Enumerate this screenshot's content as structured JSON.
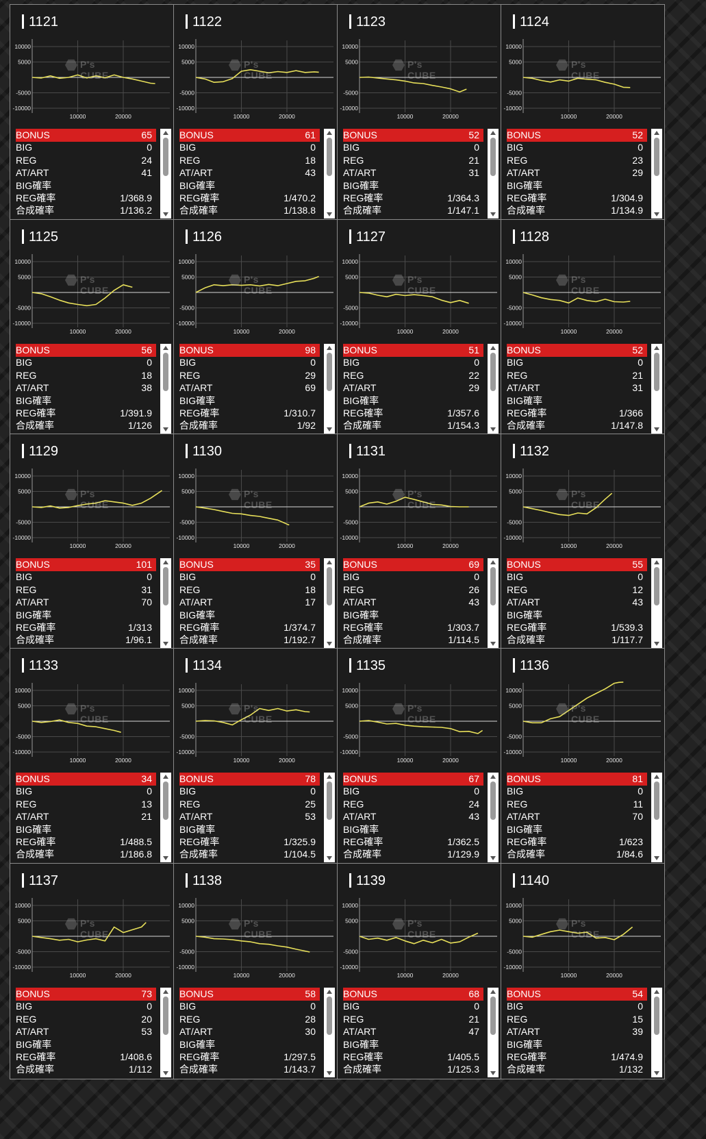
{
  "chart_common": {
    "type": "line",
    "y_ticks": [
      "10000",
      "5000",
      "-5000",
      "-10000"
    ],
    "x_ticks": [
      "10000",
      "20000"
    ],
    "watermark": "P's CUBE",
    "line_color": "#e8e05a"
  },
  "labels": {
    "bonus": "BONUS",
    "big": "BIG",
    "reg": "REG",
    "at_art": "AT/ART",
    "big_rate": "BIG確率",
    "reg_rate": "REG確率",
    "total_rate": "合成確率"
  },
  "colors": {
    "bonus_bar": "#d61f1f",
    "panel_bg": "#1c1c1c",
    "line": "#e8e05a"
  },
  "machines": [
    {
      "id": "1121",
      "bonus": "65",
      "big": "0",
      "reg": "24",
      "at_art": "41",
      "big_rate": "",
      "reg_rate": "1/368.9",
      "total_rate": "1/136.2",
      "chart_data": {
        "type": "line",
        "x": [
          0,
          2000,
          4000,
          6000,
          8000,
          10000,
          12000,
          14000,
          16000,
          18000,
          20000,
          22000,
          24000,
          26000,
          27000
        ],
        "y": [
          0,
          -200,
          500,
          -300,
          0,
          800,
          -200,
          500,
          -100,
          800,
          0,
          -500,
          -1200,
          -1900,
          -2000
        ]
      }
    },
    {
      "id": "1122",
      "bonus": "61",
      "big": "0",
      "reg": "18",
      "at_art": "43",
      "big_rate": "",
      "reg_rate": "1/470.2",
      "total_rate": "1/138.8",
      "chart_data": {
        "type": "line",
        "x": [
          0,
          2000,
          4000,
          6000,
          8000,
          10000,
          12000,
          14000,
          16000,
          18000,
          20000,
          22000,
          24000,
          26000,
          27000
        ],
        "y": [
          0,
          -500,
          -1600,
          -1400,
          -400,
          2000,
          2500,
          2000,
          1500,
          1900,
          1600,
          2200,
          1600,
          1800,
          1700
        ]
      }
    },
    {
      "id": "1123",
      "bonus": "52",
      "big": "0",
      "reg": "21",
      "at_art": "31",
      "big_rate": "",
      "reg_rate": "1/364.3",
      "total_rate": "1/147.1",
      "chart_data": {
        "type": "line",
        "x": [
          0,
          2000,
          4000,
          6000,
          8000,
          10000,
          12000,
          14000,
          16000,
          18000,
          20000,
          22000,
          23500
        ],
        "y": [
          0,
          100,
          -200,
          -500,
          -800,
          -1200,
          -1800,
          -2000,
          -2600,
          -3100,
          -3700,
          -4700,
          -3800
        ]
      }
    },
    {
      "id": "1124",
      "bonus": "52",
      "big": "0",
      "reg": "23",
      "at_art": "29",
      "big_rate": "",
      "reg_rate": "1/304.9",
      "total_rate": "1/134.9",
      "chart_data": {
        "type": "line",
        "x": [
          0,
          2000,
          4000,
          6000,
          8000,
          10000,
          12000,
          14000,
          16000,
          18000,
          20000,
          22000,
          23500
        ],
        "y": [
          0,
          -300,
          -1000,
          -1500,
          -800,
          -1200,
          -300,
          -600,
          -800,
          -1600,
          -2200,
          -3200,
          -3300
        ]
      }
    },
    {
      "id": "1125",
      "bonus": "56",
      "big": "0",
      "reg": "18",
      "at_art": "38",
      "big_rate": "",
      "reg_rate": "1/391.9",
      "total_rate": "1/126",
      "chart_data": {
        "type": "line",
        "x": [
          0,
          2000,
          4000,
          6000,
          8000,
          10000,
          12000,
          14000,
          16000,
          18000,
          20000,
          22000
        ],
        "y": [
          0,
          -400,
          -1400,
          -2500,
          -3400,
          -3900,
          -4300,
          -3900,
          -1800,
          700,
          2500,
          1700
        ]
      }
    },
    {
      "id": "1126",
      "bonus": "98",
      "big": "0",
      "reg": "29",
      "at_art": "69",
      "big_rate": "",
      "reg_rate": "1/310.7",
      "total_rate": "1/92",
      "chart_data": {
        "type": "line",
        "x": [
          0,
          2000,
          4000,
          6000,
          8000,
          10000,
          12000,
          14000,
          16000,
          18000,
          20000,
          22000,
          24000,
          26000,
          27000
        ],
        "y": [
          0,
          1500,
          2500,
          2200,
          2500,
          2300,
          2500,
          2100,
          2600,
          2200,
          2900,
          3600,
          3800,
          4600,
          5200
        ]
      }
    },
    {
      "id": "1127",
      "bonus": "51",
      "big": "0",
      "reg": "22",
      "at_art": "29",
      "big_rate": "",
      "reg_rate": "1/357.6",
      "total_rate": "1/154.3",
      "chart_data": {
        "type": "line",
        "x": [
          0,
          2000,
          4000,
          6000,
          8000,
          10000,
          12000,
          14000,
          16000,
          18000,
          20000,
          22000,
          24000
        ],
        "y": [
          0,
          -200,
          -900,
          -1400,
          -600,
          -1000,
          -700,
          -1000,
          -1400,
          -2500,
          -3300,
          -2600,
          -3500
        ]
      }
    },
    {
      "id": "1128",
      "bonus": "52",
      "big": "0",
      "reg": "21",
      "at_art": "31",
      "big_rate": "",
      "reg_rate": "1/366",
      "total_rate": "1/147.8",
      "chart_data": {
        "type": "line",
        "x": [
          0,
          2000,
          4000,
          6000,
          8000,
          10000,
          12000,
          14000,
          16000,
          18000,
          20000,
          22000,
          23500
        ],
        "y": [
          0,
          -800,
          -1700,
          -2300,
          -2600,
          -3400,
          -1800,
          -2600,
          -3000,
          -2200,
          -3000,
          -3100,
          -2900
        ]
      }
    },
    {
      "id": "1129",
      "bonus": "101",
      "big": "0",
      "reg": "31",
      "at_art": "70",
      "big_rate": "",
      "reg_rate": "1/313",
      "total_rate": "1/96.1",
      "chart_data": {
        "type": "line",
        "x": [
          0,
          2000,
          4000,
          6000,
          8000,
          10000,
          12000,
          14000,
          16000,
          18000,
          20000,
          22000,
          24000,
          26000,
          28500
        ],
        "y": [
          0,
          -200,
          300,
          -400,
          -200,
          400,
          900,
          1200,
          2000,
          1600,
          1200,
          500,
          1200,
          2800,
          5300
        ]
      }
    },
    {
      "id": "1130",
      "bonus": "35",
      "big": "0",
      "reg": "18",
      "at_art": "17",
      "big_rate": "",
      "reg_rate": "1/374.7",
      "total_rate": "1/192.7",
      "chart_data": {
        "type": "line",
        "x": [
          0,
          2000,
          4000,
          6000,
          8000,
          10000,
          12000,
          14000,
          16000,
          18000,
          20000,
          20500
        ],
        "y": [
          0,
          -400,
          -900,
          -1500,
          -2100,
          -2300,
          -2800,
          -3100,
          -3700,
          -4300,
          -5600,
          -5900
        ]
      }
    },
    {
      "id": "1131",
      "bonus": "69",
      "big": "0",
      "reg": "26",
      "at_art": "43",
      "big_rate": "",
      "reg_rate": "1/303.7",
      "total_rate": "1/114.5",
      "chart_data": {
        "type": "line",
        "x": [
          0,
          2000,
          4000,
          6000,
          8000,
          10000,
          12000,
          14000,
          16000,
          18000,
          20000,
          22000,
          24000
        ],
        "y": [
          0,
          1200,
          1600,
          900,
          1800,
          3100,
          2400,
          1600,
          800,
          600,
          100,
          0,
          0
        ]
      }
    },
    {
      "id": "1132",
      "bonus": "55",
      "big": "0",
      "reg": "12",
      "at_art": "43",
      "big_rate": "",
      "reg_rate": "1/539.3",
      "total_rate": "1/117.7",
      "chart_data": {
        "type": "line",
        "x": [
          0,
          2000,
          4000,
          6000,
          8000,
          10000,
          12000,
          14000,
          16000,
          18000,
          19500
        ],
        "y": [
          0,
          -600,
          -1200,
          -1900,
          -2500,
          -2800,
          -2000,
          -2300,
          -300,
          2500,
          4400
        ]
      }
    },
    {
      "id": "1133",
      "bonus": "34",
      "big": "0",
      "reg": "13",
      "at_art": "21",
      "big_rate": "",
      "reg_rate": "1/488.5",
      "total_rate": "1/186.8",
      "chart_data": {
        "type": "line",
        "x": [
          0,
          2000,
          4000,
          6000,
          8000,
          10000,
          12000,
          14000,
          16000,
          18000,
          19500
        ],
        "y": [
          0,
          -400,
          -100,
          400,
          -400,
          -700,
          -1600,
          -1800,
          -2400,
          -3000,
          -3600
        ]
      }
    },
    {
      "id": "1134",
      "bonus": "78",
      "big": "0",
      "reg": "25",
      "at_art": "53",
      "big_rate": "",
      "reg_rate": "1/325.9",
      "total_rate": "1/104.5",
      "chart_data": {
        "type": "line",
        "x": [
          0,
          2000,
          4000,
          6000,
          8000,
          10000,
          12000,
          14000,
          16000,
          18000,
          20000,
          22000,
          24000,
          25000
        ],
        "y": [
          0,
          200,
          100,
          -400,
          -1200,
          500,
          2000,
          4100,
          3500,
          4100,
          3300,
          3700,
          3100,
          3000
        ]
      }
    },
    {
      "id": "1135",
      "bonus": "67",
      "big": "0",
      "reg": "24",
      "at_art": "43",
      "big_rate": "",
      "reg_rate": "1/362.5",
      "total_rate": "1/129.9",
      "chart_data": {
        "type": "line",
        "x": [
          0,
          2000,
          4000,
          6000,
          8000,
          10000,
          12000,
          14000,
          16000,
          18000,
          20000,
          22000,
          24000,
          26000,
          27000
        ],
        "y": [
          0,
          200,
          -300,
          -900,
          -700,
          -1300,
          -1600,
          -1800,
          -1900,
          -2000,
          -2400,
          -3400,
          -3300,
          -4000,
          -3000
        ]
      }
    },
    {
      "id": "1136",
      "bonus": "81",
      "big": "0",
      "reg": "11",
      "at_art": "70",
      "big_rate": "",
      "reg_rate": "1/623",
      "total_rate": "1/84.6",
      "chart_data": {
        "type": "line",
        "x": [
          0,
          2000,
          4000,
          6000,
          8000,
          10000,
          12000,
          14000,
          16000,
          18000,
          20000,
          21000,
          22000
        ],
        "y": [
          0,
          -500,
          -500,
          800,
          1500,
          3500,
          5500,
          7500,
          9000,
          10500,
          12300,
          12600,
          12700
        ]
      }
    },
    {
      "id": "1137",
      "bonus": "73",
      "big": "0",
      "reg": "20",
      "at_art": "53",
      "big_rate": "",
      "reg_rate": "1/408.6",
      "total_rate": "1/112",
      "chart_data": {
        "type": "line",
        "x": [
          0,
          2000,
          4000,
          6000,
          8000,
          10000,
          12000,
          14000,
          16000,
          18000,
          20000,
          22000,
          24000,
          25000
        ],
        "y": [
          0,
          -400,
          -800,
          -1300,
          -1000,
          -1800,
          -1200,
          -800,
          -1500,
          3000,
          1200,
          2100,
          3000,
          4500
        ]
      }
    },
    {
      "id": "1138",
      "bonus": "58",
      "big": "0",
      "reg": "28",
      "at_art": "30",
      "big_rate": "",
      "reg_rate": "1/297.5",
      "total_rate": "1/143.7",
      "chart_data": {
        "type": "line",
        "x": [
          0,
          2000,
          4000,
          6000,
          8000,
          10000,
          12000,
          14000,
          16000,
          18000,
          20000,
          22000,
          24000,
          25000
        ],
        "y": [
          0,
          -300,
          -800,
          -900,
          -1100,
          -1500,
          -1800,
          -2400,
          -2600,
          -3100,
          -3500,
          -4200,
          -4800,
          -5100
        ]
      }
    },
    {
      "id": "1139",
      "bonus": "68",
      "big": "0",
      "reg": "21",
      "at_art": "47",
      "big_rate": "",
      "reg_rate": "1/405.5",
      "total_rate": "1/125.3",
      "chart_data": {
        "type": "line",
        "x": [
          0,
          2000,
          4000,
          6000,
          8000,
          10000,
          12000,
          14000,
          16000,
          18000,
          20000,
          22000,
          24000,
          26000
        ],
        "y": [
          0,
          -1000,
          -600,
          -1300,
          -400,
          -1500,
          -2400,
          -1300,
          -2100,
          -1000,
          -2200,
          -1800,
          -300,
          1000
        ]
      }
    },
    {
      "id": "1140",
      "bonus": "54",
      "big": "0",
      "reg": "15",
      "at_art": "39",
      "big_rate": "",
      "reg_rate": "1/474.9",
      "total_rate": "1/132",
      "chart_data": {
        "type": "line",
        "x": [
          0,
          2000,
          4000,
          6000,
          8000,
          10000,
          12000,
          14000,
          16000,
          18000,
          20000,
          22000,
          24000
        ],
        "y": [
          0,
          -300,
          600,
          1500,
          2000,
          1500,
          1000,
          1300,
          -600,
          -400,
          -1100,
          600,
          3000
        ]
      }
    }
  ]
}
